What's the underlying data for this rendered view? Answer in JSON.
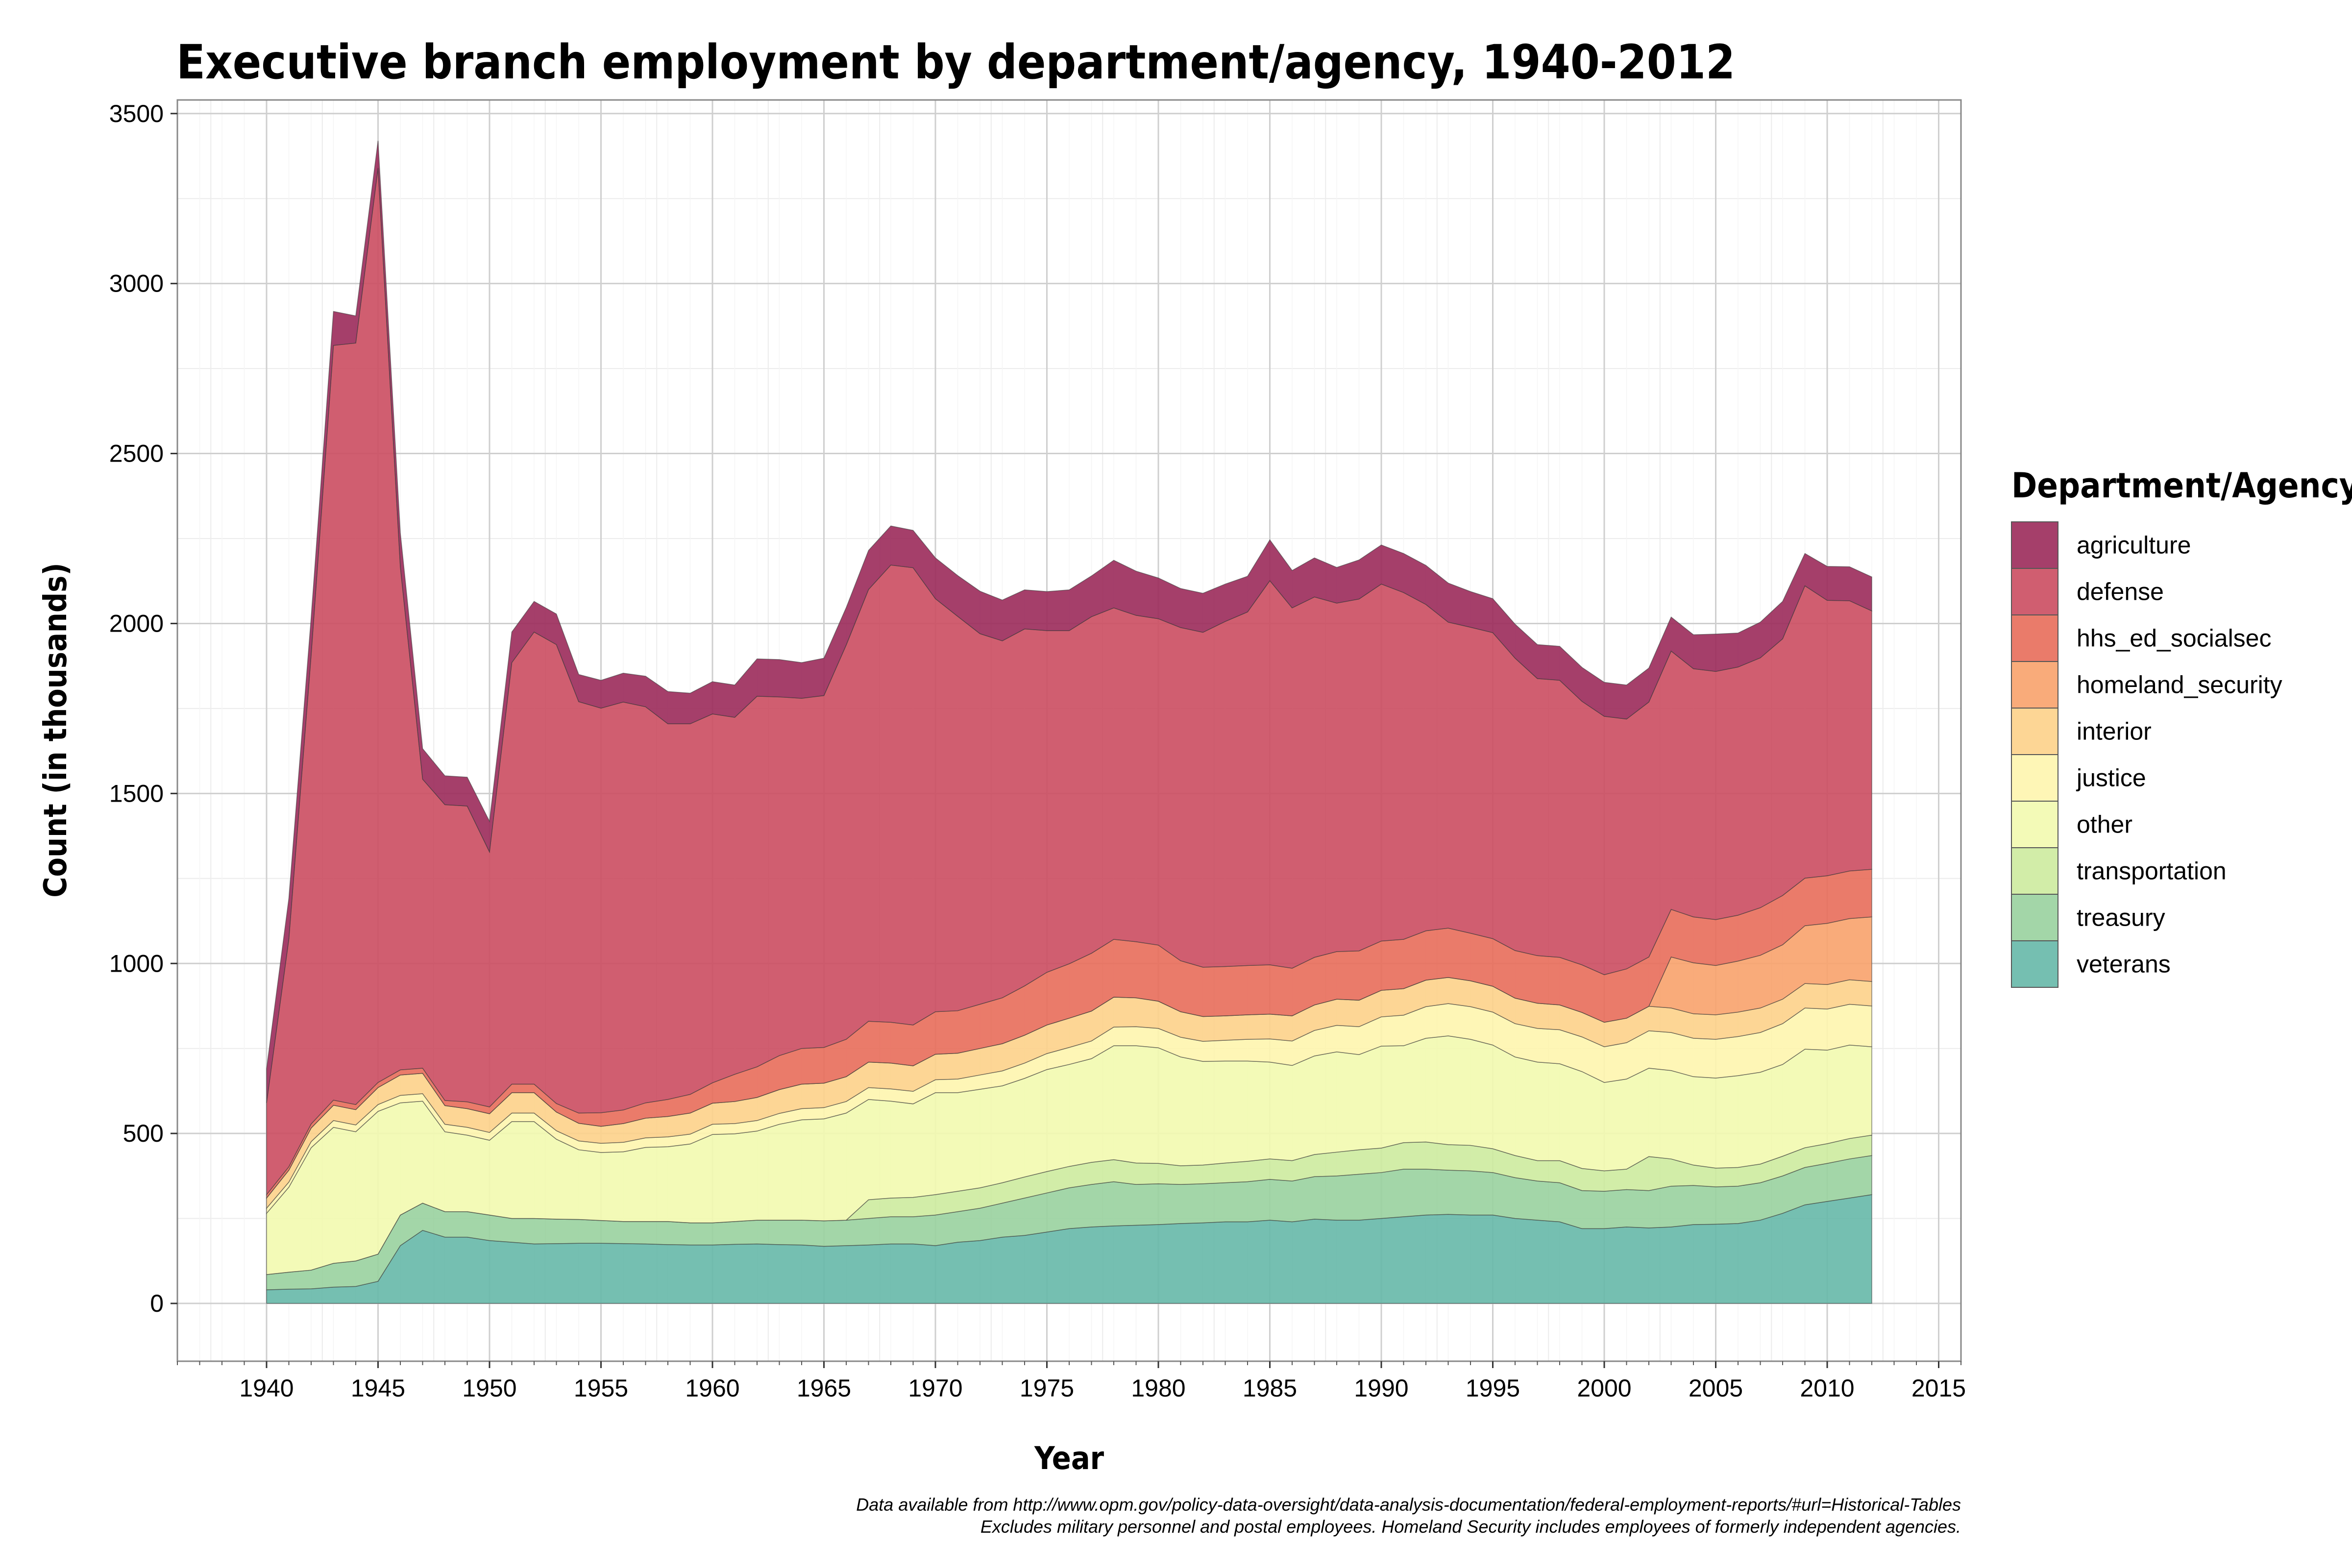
{
  "chart_data": {
    "type": "area",
    "stacked": true,
    "title": "Executive branch employment by department/agency, 1940-2012",
    "xlabel": "Year",
    "ylabel": "Count (in thousands)",
    "xlim": [
      1936,
      2016
    ],
    "ylim": [
      -170,
      3540
    ],
    "x_ticks": [
      1940,
      1945,
      1950,
      1955,
      1960,
      1965,
      1970,
      1975,
      1980,
      1985,
      1990,
      1995,
      2000,
      2005,
      2010,
      2015
    ],
    "y_ticks": [
      0,
      500,
      1000,
      1500,
      2000,
      2500,
      3000,
      3500
    ],
    "grid": true,
    "legend": {
      "title": "Department/Agency",
      "position": "right"
    },
    "caption": [
      "Data available from http://www.opm.gov/policy-data-oversight/data-analysis-documentation/federal-employment-reports/#url=Historical-Tables",
      "Excludes military personnel and postal employees. Homeland Security includes employees of formerly independent agencies."
    ],
    "x": [
      1940,
      1941,
      1942,
      1943,
      1944,
      1945,
      1946,
      1947,
      1948,
      1949,
      1950,
      1951,
      1952,
      1953,
      1954,
      1955,
      1956,
      1957,
      1958,
      1959,
      1960,
      1961,
      1962,
      1963,
      1964,
      1965,
      1966,
      1967,
      1968,
      1969,
      1970,
      1971,
      1972,
      1973,
      1974,
      1975,
      1976,
      1977,
      1978,
      1979,
      1980,
      1981,
      1982,
      1983,
      1984,
      1985,
      1986,
      1987,
      1988,
      1989,
      1990,
      1991,
      1992,
      1993,
      1994,
      1995,
      1996,
      1997,
      1998,
      1999,
      2000,
      2001,
      2002,
      2003,
      2004,
      2005,
      2006,
      2007,
      2008,
      2009,
      2010,
      2011,
      2012
    ],
    "series": [
      {
        "name": "veterans",
        "color": "#66B8A8",
        "values": [
          40,
          42,
          43,
          48,
          50,
          65,
          170,
          215,
          195,
          195,
          185,
          180,
          175,
          176,
          177,
          177,
          176,
          175,
          173,
          172,
          172,
          174,
          175,
          173,
          172,
          168,
          170,
          172,
          175,
          175,
          170,
          180,
          185,
          195,
          200,
          210,
          220,
          225,
          228,
          230,
          232,
          235,
          237,
          240,
          240,
          245,
          240,
          248,
          245,
          245,
          250,
          255,
          260,
          262,
          260,
          260,
          250,
          245,
          240,
          220,
          220,
          225,
          222,
          225,
          232,
          233,
          235,
          245,
          265,
          290,
          300,
          310,
          320
        ]
      },
      {
        "name": "treasury",
        "color": "#99D19F",
        "values": [
          45,
          50,
          55,
          70,
          75,
          80,
          90,
          80,
          75,
          75,
          75,
          70,
          75,
          72,
          70,
          67,
          65,
          66,
          68,
          65,
          65,
          67,
          70,
          72,
          73,
          75,
          75,
          78,
          80,
          80,
          90,
          90,
          95,
          100,
          110,
          115,
          120,
          125,
          130,
          120,
          120,
          115,
          115,
          115,
          118,
          120,
          120,
          125,
          130,
          135,
          135,
          140,
          135,
          130,
          130,
          125,
          120,
          115,
          115,
          112,
          110,
          110,
          110,
          120,
          115,
          110,
          110,
          110,
          110,
          110,
          112,
          115,
          115
        ]
      },
      {
        "name": "transportation",
        "color": "#CDEB9E",
        "values": [
          0,
          0,
          0,
          0,
          0,
          0,
          0,
          0,
          0,
          0,
          0,
          0,
          0,
          0,
          0,
          0,
          0,
          0,
          0,
          0,
          0,
          0,
          0,
          0,
          0,
          0,
          0,
          55,
          55,
          57,
          60,
          60,
          60,
          60,
          62,
          63,
          63,
          65,
          65,
          63,
          60,
          55,
          55,
          58,
          60,
          60,
          60,
          65,
          70,
          72,
          72,
          78,
          80,
          75,
          75,
          70,
          65,
          60,
          65,
          65,
          60,
          60,
          100,
          80,
          60,
          55,
          55,
          55,
          58,
          58,
          58,
          60,
          60
        ]
      },
      {
        "name": "other",
        "color": "#F2FAAF",
        "values": [
          180,
          250,
          360,
          400,
          380,
          420,
          330,
          300,
          235,
          225,
          220,
          285,
          285,
          235,
          205,
          200,
          205,
          218,
          220,
          232,
          260,
          258,
          262,
          282,
          295,
          300,
          315,
          295,
          285,
          275,
          300,
          290,
          290,
          285,
          290,
          300,
          300,
          305,
          335,
          345,
          340,
          320,
          305,
          300,
          295,
          285,
          280,
          290,
          295,
          280,
          300,
          285,
          305,
          320,
          312,
          305,
          290,
          290,
          285,
          285,
          260,
          265,
          260,
          260,
          260,
          265,
          270,
          270,
          270,
          290,
          275,
          275,
          260
        ]
      },
      {
        "name": "justice",
        "color": "#FEF5AE",
        "values": [
          15,
          15,
          18,
          20,
          20,
          20,
          22,
          22,
          22,
          23,
          23,
          25,
          25,
          25,
          26,
          27,
          28,
          28,
          29,
          29,
          30,
          30,
          31,
          32,
          33,
          33,
          34,
          35,
          36,
          37,
          38,
          40,
          42,
          44,
          45,
          47,
          50,
          52,
          55,
          56,
          57,
          58,
          59,
          61,
          64,
          68,
          72,
          75,
          78,
          82,
          86,
          90,
          93,
          95,
          96,
          97,
          98,
          99,
          100,
          102,
          105,
          107,
          110,
          112,
          113,
          114,
          115,
          117,
          120,
          121,
          121,
          120,
          120
        ]
      },
      {
        "name": "interior",
        "color": "#FDD28A",
        "values": [
          30,
          35,
          40,
          45,
          45,
          50,
          60,
          60,
          55,
          55,
          55,
          60,
          60,
          55,
          52,
          50,
          55,
          58,
          60,
          62,
          62,
          65,
          68,
          70,
          72,
          72,
          73,
          75,
          76,
          75,
          75,
          76,
          78,
          80,
          82,
          84,
          86,
          88,
          88,
          85,
          80,
          75,
          73,
          72,
          72,
          73,
          74,
          75,
          77,
          78,
          78,
          78,
          78,
          77,
          76,
          76,
          75,
          74,
          73,
          72,
          72,
          72,
          72,
          72,
          72,
          72,
          72,
          72,
          72,
          72,
          72,
          72,
          72
        ]
      },
      {
        "name": "homeland_security",
        "color": "#F8A26B",
        "values": [
          0,
          0,
          0,
          0,
          0,
          0,
          0,
          0,
          0,
          0,
          0,
          0,
          0,
          0,
          0,
          0,
          0,
          0,
          0,
          0,
          0,
          0,
          0,
          0,
          0,
          0,
          0,
          0,
          0,
          0,
          0,
          0,
          0,
          0,
          0,
          0,
          0,
          0,
          0,
          0,
          0,
          0,
          0,
          0,
          0,
          0,
          0,
          0,
          0,
          0,
          0,
          0,
          0,
          0,
          0,
          0,
          0,
          0,
          0,
          0,
          0,
          0,
          0,
          150,
          150,
          145,
          150,
          155,
          160,
          170,
          180,
          180,
          190
        ]
      },
      {
        "name": "hhs_ed_socialsec",
        "color": "#E86D5A",
        "values": [
          10,
          10,
          12,
          15,
          15,
          15,
          15,
          15,
          15,
          20,
          20,
          25,
          25,
          25,
          30,
          40,
          40,
          45,
          50,
          55,
          60,
          80,
          90,
          100,
          105,
          105,
          110,
          120,
          120,
          120,
          125,
          125,
          130,
          135,
          145,
          155,
          160,
          170,
          170,
          165,
          165,
          150,
          145,
          145,
          145,
          145,
          140,
          140,
          140,
          145,
          145,
          145,
          145,
          145,
          140,
          140,
          140,
          140,
          140,
          140,
          140,
          145,
          145,
          140,
          135,
          135,
          135,
          140,
          145,
          140,
          140,
          140,
          140
        ]
      },
      {
        "name": "defense",
        "color": "#CB4D61",
        "values": [
          270,
          670,
          1380,
          2220,
          2240,
          2690,
          1480,
          850,
          870,
          870,
          750,
          1240,
          1330,
          1350,
          1210,
          1190,
          1200,
          1165,
          1105,
          1090,
          1085,
          1050,
          1090,
          1055,
          1030,
          1035,
          1160,
          1270,
          1345,
          1345,
          1215,
          1160,
          1090,
          1050,
          1050,
          1005,
          980,
          990,
          975,
          960,
          960,
          980,
          985,
          1015,
          1040,
          1130,
          1060,
          1060,
          1025,
          1035,
          1050,
          1020,
          960,
          900,
          900,
          900,
          860,
          815,
          815,
          775,
          760,
          735,
          750,
          760,
          730,
          730,
          730,
          735,
          755,
          860,
          810,
          795,
          760
        ]
      },
      {
        "name": "agriculture",
        "color": "#9B2A5A",
        "values": [
          100,
          120,
          110,
          100,
          80,
          80,
          100,
          90,
          85,
          85,
          90,
          90,
          90,
          90,
          80,
          82,
          85,
          90,
          95,
          90,
          95,
          95,
          110,
          110,
          105,
          110,
          110,
          115,
          115,
          110,
          120,
          120,
          125,
          120,
          115,
          115,
          120,
          120,
          140,
          130,
          120,
          115,
          115,
          110,
          105,
          120,
          110,
          115,
          105,
          115,
          115,
          115,
          115,
          115,
          105,
          100,
          100,
          100,
          100,
          100,
          100,
          100,
          100,
          100,
          100,
          110,
          100,
          105,
          110,
          95,
          100,
          100,
          100
        ]
      }
    ]
  }
}
